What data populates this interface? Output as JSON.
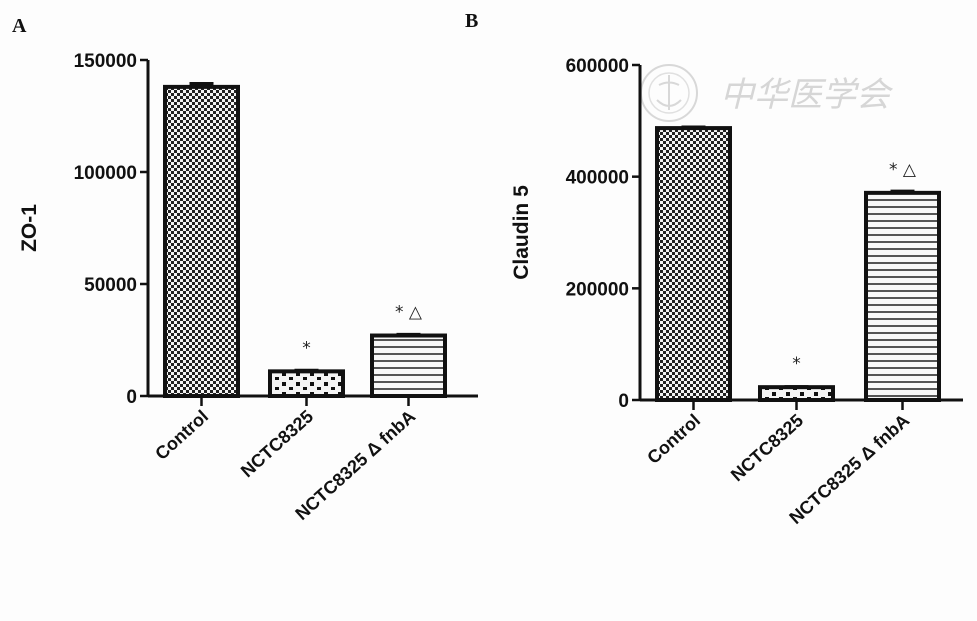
{
  "watermark": "中华医学会",
  "chart_data": [
    {
      "type": "bar",
      "panel_label": "A",
      "ylabel": "ZO-1",
      "xlabel": "",
      "ylim": [
        0,
        150000
      ],
      "yticks": [
        0,
        50000,
        100000,
        150000
      ],
      "ytick_labels": [
        "0",
        "50000",
        "100000",
        "150000"
      ],
      "categories": [
        "Control",
        "NCTC8325",
        "NCTC8325 Δ fnbA"
      ],
      "values": [
        138000,
        11000,
        27000
      ],
      "errors": [
        1500,
        500,
        500
      ],
      "patterns": [
        "fine-checker",
        "coarse-checker",
        "horizontal-lines"
      ],
      "annotations": [
        "",
        "*",
        "* △"
      ],
      "grid": false
    },
    {
      "type": "bar",
      "panel_label": "B",
      "ylabel": "Claudin 5",
      "xlabel": "",
      "ylim": [
        0,
        600000
      ],
      "yticks": [
        0,
        200000,
        400000,
        600000
      ],
      "ytick_labels": [
        "0",
        "200000",
        "400000",
        "600000"
      ],
      "categories": [
        "Control",
        "NCTC8325",
        "NCTC8325 Δ fnbA"
      ],
      "values": [
        487000,
        23000,
        371000
      ],
      "errors": [
        2000,
        1000,
        3000
      ],
      "patterns": [
        "fine-checker",
        "coarse-checker",
        "horizontal-lines"
      ],
      "annotations": [
        "",
        "*",
        "* △"
      ],
      "grid": false
    }
  ]
}
